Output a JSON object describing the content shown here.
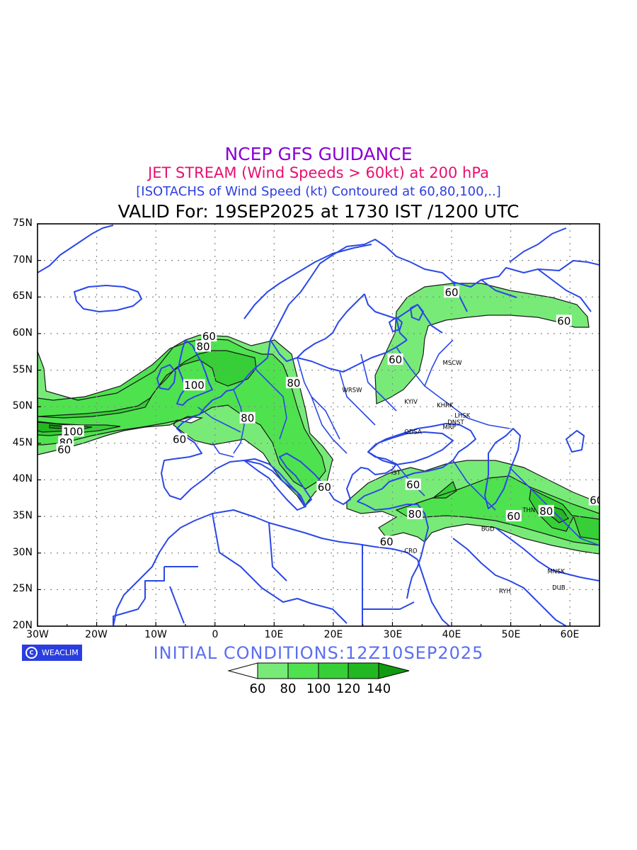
{
  "titles": {
    "line1": "NCEP GFS GUIDANCE",
    "line2": "JET STREAM (Wind Speeds > 60kt) at 200 hPa",
    "line3": "[ISOTACHS of Wind Speed (kt) Contoured at 60,80,100,..]",
    "line4": "VALID For: 19SEP2025 at 1730 IST /1200 UTC"
  },
  "colors": {
    "line1": "#8a00d4",
    "line2": "#e8106e",
    "line3": "#2d3fe0",
    "line4": "#000000",
    "coast": "#2b48e6",
    "shade_60": "#78ea78",
    "shade_80": "#4fe24f",
    "shade_100": "#37cf37",
    "shade_120": "#22b822",
    "shade_140": "#109a10",
    "init_text": "#5a6ef0"
  },
  "axes": {
    "lat_labels": [
      "75N",
      "70N",
      "65N",
      "60N",
      "55N",
      "50N",
      "45N",
      "40N",
      "35N",
      "30N",
      "25N",
      "20N"
    ],
    "lon_labels": [
      "30W",
      "20W",
      "10W",
      "0",
      "10E",
      "20E",
      "30E",
      "40E",
      "50E",
      "60E"
    ]
  },
  "cities": [
    {
      "name": "MSCW",
      "lon": 38.5,
      "lat": 56
    },
    {
      "name": "WRSW",
      "lon": 21.5,
      "lat": 52.3
    },
    {
      "name": "KYIV",
      "lon": 32,
      "lat": 50.7
    },
    {
      "name": "KHRK",
      "lon": 37.5,
      "lat": 50.2
    },
    {
      "name": "LHSK",
      "lon": 40.5,
      "lat": 48.8
    },
    {
      "name": "DNST",
      "lon": 39.3,
      "lat": 47.9
    },
    {
      "name": "MRP",
      "lon": 38.5,
      "lat": 47.2
    },
    {
      "name": "ODSA",
      "lon": 32,
      "lat": 46.6
    },
    {
      "name": "IST",
      "lon": 29.8,
      "lat": 41
    },
    {
      "name": "THN",
      "lon": 52,
      "lat": 35.9
    },
    {
      "name": "BGD",
      "lon": 45,
      "lat": 33.3
    },
    {
      "name": "CRO",
      "lon": 32,
      "lat": 30.3
    },
    {
      "name": "MNSK",
      "lon": 56.2,
      "lat": 27.5
    },
    {
      "name": "RYH",
      "lon": 48,
      "lat": 24.8
    },
    {
      "name": "DUB",
      "lon": 57,
      "lat": 25.3
    }
  ],
  "contour_labels": [
    {
      "text": "60",
      "lon": -1,
      "lat": 59.6
    },
    {
      "text": "80",
      "lon": -2,
      "lat": 58.2
    },
    {
      "text": "100",
      "lon": -3.5,
      "lat": 52.9
    },
    {
      "text": "80",
      "lon": 13.3,
      "lat": 53.2
    },
    {
      "text": "80",
      "lon": 5.5,
      "lat": 48.4
    },
    {
      "text": "60",
      "lon": -6,
      "lat": 45.5
    },
    {
      "text": "100",
      "lon": -24,
      "lat": 46.6
    },
    {
      "text": "80",
      "lon": -25.2,
      "lat": 45.1
    },
    {
      "text": "60",
      "lon": -25.5,
      "lat": 44.1
    },
    {
      "text": "60",
      "lon": 18.5,
      "lat": 39
    },
    {
      "text": "60",
      "lon": 40,
      "lat": 65.6
    },
    {
      "text": "60",
      "lon": 59,
      "lat": 61.7
    },
    {
      "text": "60",
      "lon": 30.5,
      "lat": 56.4
    },
    {
      "text": "60",
      "lon": 33.5,
      "lat": 39.3
    },
    {
      "text": "80",
      "lon": 33.8,
      "lat": 35.3
    },
    {
      "text": "60",
      "lon": 29,
      "lat": 31.5
    },
    {
      "text": "60",
      "lon": 50.5,
      "lat": 35
    },
    {
      "text": "80",
      "lon": 56,
      "lat": 35.7
    },
    {
      "text": "60",
      "lon": 64.5,
      "lat": 37.2
    }
  ],
  "watermark": "WEACLIM",
  "init": "INITIAL  CONDITIONS:12Z10SEP2025",
  "colorbar": {
    "ticks": [
      "60",
      "80",
      "100",
      "120",
      "140"
    ]
  }
}
